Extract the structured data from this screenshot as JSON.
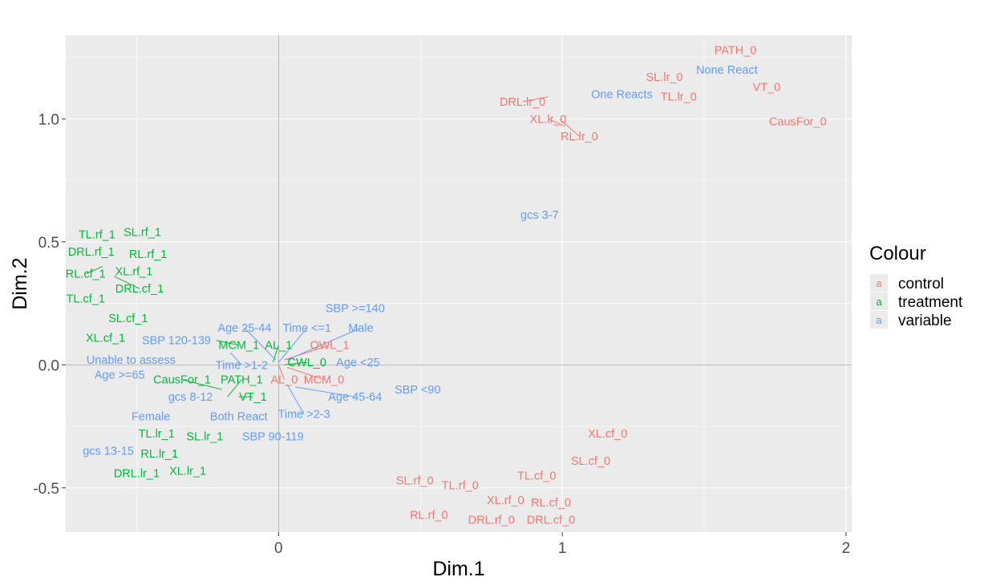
{
  "chart_data": {
    "type": "scatter",
    "xlabel": "Dim.1",
    "ylabel": "Dim.2",
    "xlim": [
      -0.75,
      2.02
    ],
    "ylim": [
      -0.68,
      1.34
    ],
    "x_ticks": [
      0,
      1,
      2
    ],
    "x_tick_labels": [
      "0",
      "1",
      "2"
    ],
    "y_ticks": [
      -0.5,
      0.0,
      0.5,
      1.0
    ],
    "y_tick_labels": [
      "-0.5",
      "0.0",
      "0.5",
      "1.0"
    ],
    "grid": true,
    "legend": {
      "title": "Colour",
      "position": "right",
      "key_glyph": "a",
      "entries": [
        {
          "name": "control",
          "color": "#F8766D"
        },
        {
          "name": "treatment",
          "color": "#00BA38"
        },
        {
          "name": "variable",
          "color": "#619CFF"
        }
      ]
    },
    "series": [
      {
        "name": "control",
        "color": "#F8766D",
        "points": [
          {
            "label": "PATH_0",
            "x": 1.61,
            "y": 1.28
          },
          {
            "label": "SL.lr_0",
            "x": 1.36,
            "y": 1.17
          },
          {
            "label": "VT_0",
            "x": 1.72,
            "y": 1.13
          },
          {
            "label": "TL.lr_0",
            "x": 1.41,
            "y": 1.09
          },
          {
            "label": "DRL.lr_0",
            "x": 0.86,
            "y": 1.07,
            "leader": [
              0.95,
              1.09
            ]
          },
          {
            "label": "XL.lr_0",
            "x": 0.95,
            "y": 1.0,
            "leader": [
              1.01,
              0.97
            ]
          },
          {
            "label": "CausFor_0",
            "x": 1.83,
            "y": 0.99
          },
          {
            "label": "RL.lr_0",
            "x": 1.06,
            "y": 0.93,
            "leader": [
              0.99,
              1.0
            ]
          },
          {
            "label": "OWL_1",
            "x": 0.18,
            "y": 0.08,
            "leader": [
              0.02,
              0.02
            ]
          },
          {
            "label": "AL_0",
            "x": 0.02,
            "y": -0.06,
            "leader": [
              0.0,
              0.0
            ]
          },
          {
            "label": "MCM_0",
            "x": 0.16,
            "y": -0.06,
            "leader": [
              0.03,
              -0.01
            ]
          },
          {
            "label": "XL.cf_0",
            "x": 1.16,
            "y": -0.28
          },
          {
            "label": "SL.cf_0",
            "x": 1.1,
            "y": -0.39
          },
          {
            "label": "TL.cf_0",
            "x": 0.91,
            "y": -0.45
          },
          {
            "label": "SL.rf_0",
            "x": 0.48,
            "y": -0.47
          },
          {
            "label": "TL.rf_0",
            "x": 0.64,
            "y": -0.49
          },
          {
            "label": "XL.rf_0",
            "x": 0.8,
            "y": -0.55
          },
          {
            "label": "RL.cf_0",
            "x": 0.96,
            "y": -0.56
          },
          {
            "label": "RL.rf_0",
            "x": 0.53,
            "y": -0.61
          },
          {
            "label": "DRL.rf_0",
            "x": 0.75,
            "y": -0.63
          },
          {
            "label": "DRL.cf_0",
            "x": 0.96,
            "y": -0.63
          }
        ]
      },
      {
        "name": "treatment",
        "color": "#00BA38",
        "points": [
          {
            "label": "TL.rf_1",
            "x": -0.64,
            "y": 0.53
          },
          {
            "label": "SL.rf_1",
            "x": -0.48,
            "y": 0.54
          },
          {
            "label": "DRL.rf_1",
            "x": -0.66,
            "y": 0.46
          },
          {
            "label": "RL.rf_1",
            "x": -0.46,
            "y": 0.45
          },
          {
            "label": "XL.rf_1",
            "x": -0.51,
            "y": 0.38
          },
          {
            "label": "RL.cf_1",
            "x": -0.68,
            "y": 0.37,
            "leader": [
              -0.62,
              0.4
            ]
          },
          {
            "label": "DRL.cf_1",
            "x": -0.49,
            "y": 0.31,
            "leader": [
              -0.58,
              0.36
            ]
          },
          {
            "label": "TL.cf_1",
            "x": -0.68,
            "y": 0.27
          },
          {
            "label": "SL.cf_1",
            "x": -0.53,
            "y": 0.19
          },
          {
            "label": "XL.cf_1",
            "x": -0.61,
            "y": 0.11
          },
          {
            "label": "MCM_1",
            "x": -0.14,
            "y": 0.08,
            "leader": [
              -0.22,
              0.1
            ]
          },
          {
            "label": "AL_1",
            "x": 0.0,
            "y": 0.08,
            "leader": [
              -0.02,
              0.01
            ]
          },
          {
            "label": "CWL_0",
            "x": 0.1,
            "y": 0.01,
            "leader": [
              0.02,
              0.0
            ]
          },
          {
            "label": "CausFor_1",
            "x": -0.34,
            "y": -0.06,
            "leader": [
              -0.2,
              -0.1
            ]
          },
          {
            "label": "PATH_1",
            "x": -0.13,
            "y": -0.06,
            "leader": [
              -0.18,
              -0.13
            ]
          },
          {
            "label": "VT_1",
            "x": -0.09,
            "y": -0.13,
            "leader": [
              -0.14,
              -0.13
            ]
          },
          {
            "label": "TL.lr_1",
            "x": -0.43,
            "y": -0.28
          },
          {
            "label": "SL.lr_1",
            "x": -0.26,
            "y": -0.29
          },
          {
            "label": "RL.lr_1",
            "x": -0.42,
            "y": -0.36
          },
          {
            "label": "DRL.lr_1",
            "x": -0.5,
            "y": -0.44
          },
          {
            "label": "XL.lr_1",
            "x": -0.32,
            "y": -0.43
          }
        ]
      },
      {
        "name": "variable",
        "color": "#619CFF",
        "points": [
          {
            "label": "None React",
            "x": 1.58,
            "y": 1.2
          },
          {
            "label": "One Reacts",
            "x": 1.21,
            "y": 1.1
          },
          {
            "label": "gcs 3-7",
            "x": 0.92,
            "y": 0.61
          },
          {
            "label": "SBP >=140",
            "x": 0.27,
            "y": 0.23
          },
          {
            "label": "Age 25-44",
            "x": -0.12,
            "y": 0.15,
            "leader": [
              -0.01,
              0.02
            ]
          },
          {
            "label": "Time <=1",
            "x": 0.1,
            "y": 0.15,
            "leader": [
              0.0,
              0.01
            ]
          },
          {
            "label": "Male",
            "x": 0.29,
            "y": 0.15,
            "leader": [
              0.03,
              0.02
            ]
          },
          {
            "label": "SBP 120-139",
            "x": -0.36,
            "y": 0.1
          },
          {
            "label": "Unable to assess",
            "x": -0.52,
            "y": 0.02
          },
          {
            "label": "Age <25",
            "x": 0.28,
            "y": 0.01
          },
          {
            "label": "Age >=65",
            "x": -0.56,
            "y": -0.04
          },
          {
            "label": "Time >1-2",
            "x": -0.13,
            "y": 0.0,
            "leader": [
              -0.17,
              0.05
            ]
          },
          {
            "label": "SBP <90",
            "x": 0.49,
            "y": -0.1
          },
          {
            "label": "gcs 8-12",
            "x": -0.31,
            "y": -0.13
          },
          {
            "label": "Age 45-64",
            "x": 0.27,
            "y": -0.13,
            "leader": [
              0.06,
              -0.09
            ]
          },
          {
            "label": "Female",
            "x": -0.45,
            "y": -0.21
          },
          {
            "label": "Both React",
            "x": -0.14,
            "y": -0.21
          },
          {
            "label": "Time >2-3",
            "x": 0.09,
            "y": -0.2,
            "leader": [
              0.03,
              -0.08
            ]
          },
          {
            "label": "SBP 90-119",
            "x": -0.02,
            "y": -0.29
          },
          {
            "label": "gcs 13-15",
            "x": -0.6,
            "y": -0.35
          }
        ]
      }
    ]
  }
}
